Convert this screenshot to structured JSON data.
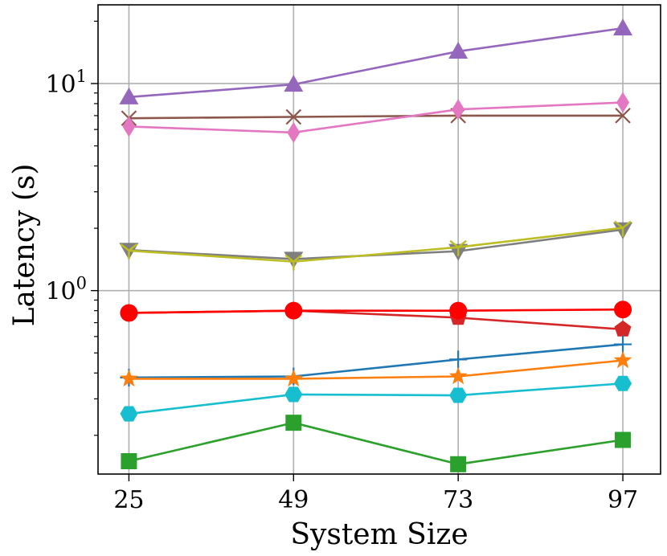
{
  "chart_data": {
    "type": "line",
    "xlabel": "System Size",
    "ylabel": "Latency (s)",
    "x": [
      25,
      49,
      73,
      97
    ],
    "x_tick_labels": [
      "25",
      "49",
      "73",
      "97"
    ],
    "y_scale": "log",
    "ylim": [
      0.13,
      24
    ],
    "y_major_ticks": [
      {
        "value": 1,
        "base": "10",
        "exp": "0"
      },
      {
        "value": 10,
        "base": "10",
        "exp": "1"
      }
    ],
    "grid": true,
    "series": [
      {
        "color": "#9467bd",
        "marker": "triangle-up",
        "values": [
          8.6,
          9.9,
          14.3,
          18.5
        ]
      },
      {
        "color": "#8c564b",
        "marker": "x",
        "values": [
          6.8,
          6.9,
          7.0,
          7.0
        ]
      },
      {
        "color": "#e377c2",
        "marker": "diamond",
        "values": [
          6.2,
          5.8,
          7.5,
          8.1
        ]
      },
      {
        "color": "#7f7f7f",
        "marker": "triangle-down",
        "values": [
          1.57,
          1.42,
          1.55,
          1.97
        ]
      },
      {
        "color": "#bcbd22",
        "marker": "y-marker",
        "values": [
          1.56,
          1.38,
          1.62,
          2.01
        ]
      },
      {
        "color": "#d62728",
        "marker": "pentagon",
        "values": [
          0.78,
          0.8,
          0.74,
          0.65
        ]
      },
      {
        "color": "#ff0000",
        "marker": "circle",
        "values": [
          0.78,
          0.8,
          0.8,
          0.81
        ]
      },
      {
        "color": "#1f77b4",
        "marker": "plus",
        "values": [
          0.38,
          0.385,
          0.465,
          0.55
        ]
      },
      {
        "color": "#ff7f0e",
        "marker": "star",
        "values": [
          0.375,
          0.375,
          0.385,
          0.46
        ]
      },
      {
        "color": "#17becf",
        "marker": "hexagon",
        "values": [
          0.254,
          0.315,
          0.312,
          0.356
        ]
      },
      {
        "color": "#2ca02c",
        "marker": "square",
        "values": [
          0.15,
          0.23,
          0.145,
          0.19
        ]
      }
    ]
  }
}
